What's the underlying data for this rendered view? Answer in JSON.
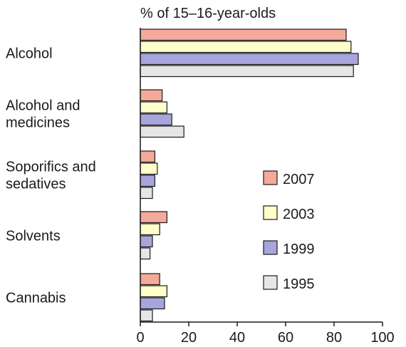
{
  "chart_data": {
    "type": "bar",
    "orientation": "horizontal",
    "title": "% of 15–16-year-olds",
    "xlabel": "",
    "ylabel": "",
    "xlim": [
      0,
      100
    ],
    "xticks": [
      0,
      20,
      40,
      60,
      80,
      100
    ],
    "grid": false,
    "legend_position": "center-right",
    "categories": [
      [
        "Alcohol"
      ],
      [
        "Alcohol and",
        "medicines"
      ],
      [
        "Soporifics and",
        "sedatives"
      ],
      [
        "Solvents"
      ],
      [
        "Cannabis"
      ]
    ],
    "series": [
      {
        "name": "2007",
        "color": "#f4a99a",
        "values": [
          85,
          9,
          6,
          11,
          8
        ]
      },
      {
        "name": "2003",
        "color": "#ffffcc",
        "values": [
          87,
          11,
          7,
          8,
          11
        ]
      },
      {
        "name": "1999",
        "color": "#a8a5dc",
        "values": [
          90,
          13,
          6,
          5,
          10
        ]
      },
      {
        "name": "1995",
        "color": "#e6e6e6",
        "values": [
          88,
          18,
          5,
          4,
          5
        ]
      }
    ]
  }
}
